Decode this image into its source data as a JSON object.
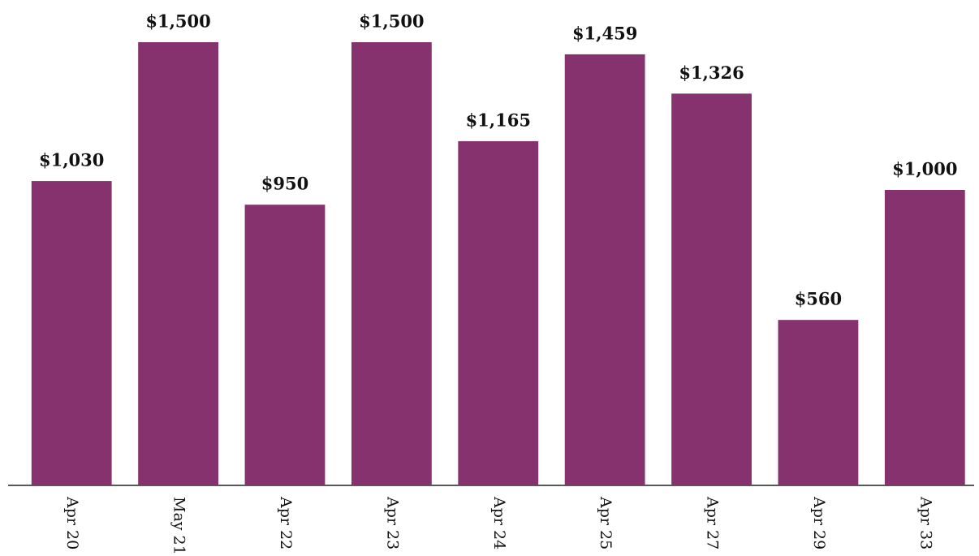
{
  "chart_data": {
    "type": "bar",
    "categories": [
      "Apr 20",
      "May 21",
      "Apr 22",
      "Apr 23",
      "Apr 24",
      "Apr 25",
      "Apr 27",
      "Apr 29",
      "Apr 33"
    ],
    "values": [
      1030,
      1500,
      950,
      1500,
      1165,
      1459,
      1326,
      560,
      1000
    ],
    "value_labels": [
      "$1,030",
      "$1,500",
      "$950",
      "$1,500",
      "$1,165",
      "$1,459",
      "$1,326",
      "$560",
      "$1,000"
    ],
    "color": "#86326f",
    "ylim": [
      0,
      1500
    ]
  }
}
